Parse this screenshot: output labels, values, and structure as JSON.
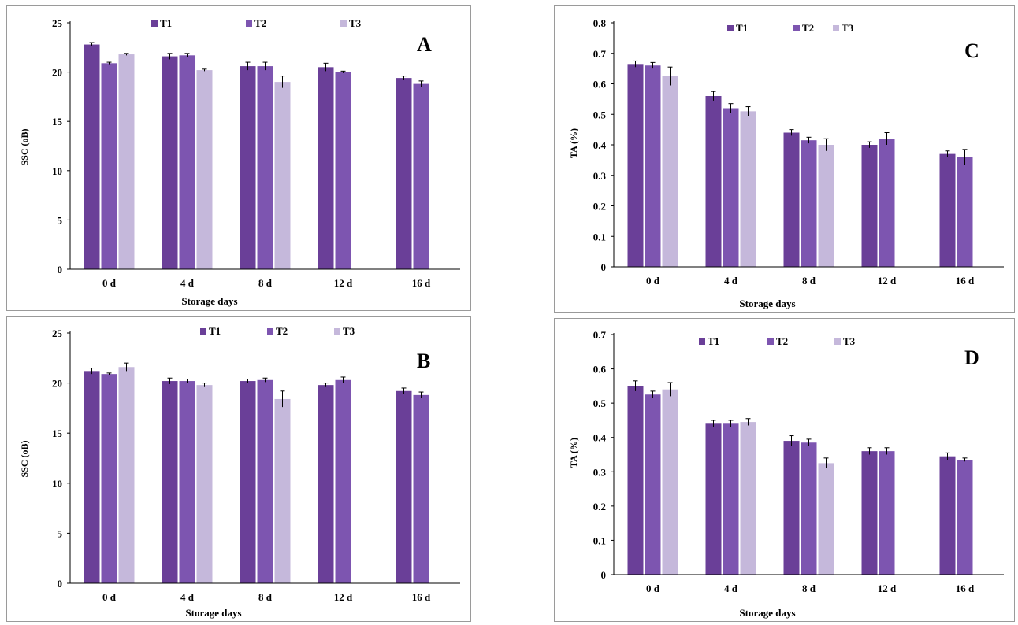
{
  "colors": {
    "T1": "#6a3f98",
    "T2": "#7d55b0",
    "T3": "#c5b8db",
    "axis": "#000000",
    "frame": "#9a9a9a"
  },
  "chart_data": [
    {
      "panel": "A",
      "type": "bar",
      "letter": "A",
      "categories": [
        "0 d",
        "4 d",
        "8 d",
        "12 d",
        "16 d"
      ],
      "xlabel": "Storage days",
      "ylabel": "SSC (oB)",
      "ylim": [
        0,
        25
      ],
      "yticks": [
        "0",
        "5",
        "10",
        "15",
        "20",
        "25"
      ],
      "legend_position": "top",
      "series": [
        {
          "name": "T1",
          "values": [
            22.8,
            21.6,
            20.6,
            20.5,
            19.4
          ],
          "errors": [
            0.2,
            0.3,
            0.4,
            0.4,
            0.2
          ]
        },
        {
          "name": "T2",
          "values": [
            20.9,
            21.7,
            20.6,
            20.0,
            18.8
          ],
          "errors": [
            0.1,
            0.2,
            0.4,
            0.1,
            0.3
          ]
        },
        {
          "name": "T3",
          "values": [
            21.8,
            20.2,
            19.0,
            null,
            null
          ],
          "errors": [
            0.1,
            0.1,
            0.6,
            null,
            null
          ]
        }
      ]
    },
    {
      "panel": "B",
      "type": "bar",
      "letter": "B",
      "categories": [
        "0 d",
        "4 d",
        "8 d",
        "12 d",
        "16 d"
      ],
      "xlabel": "Storage days",
      "ylabel": "SSC (oB)",
      "ylim": [
        0,
        25
      ],
      "yticks": [
        "0",
        "5",
        "10",
        "15",
        "20",
        "25"
      ],
      "legend_position": "top",
      "series": [
        {
          "name": "T1",
          "values": [
            21.2,
            20.2,
            20.2,
            19.8,
            19.2
          ],
          "errors": [
            0.3,
            0.3,
            0.2,
            0.2,
            0.3
          ]
        },
        {
          "name": "T2",
          "values": [
            20.9,
            20.2,
            20.3,
            20.3,
            18.8
          ],
          "errors": [
            0.1,
            0.2,
            0.2,
            0.3,
            0.3
          ]
        },
        {
          "name": "T3",
          "values": [
            21.6,
            19.8,
            18.4,
            null,
            null
          ],
          "errors": [
            0.4,
            0.2,
            0.8,
            null,
            null
          ]
        }
      ]
    },
    {
      "panel": "C",
      "type": "bar",
      "letter": "C",
      "categories": [
        "0 d",
        "4 d",
        "8 d",
        "12 d",
        "16 d"
      ],
      "xlabel": "Storage days",
      "ylabel": "TA (%)",
      "ylim": [
        0,
        0.8
      ],
      "yticks": [
        "0",
        "0.1",
        "0.2",
        "0.3",
        "0.4",
        "0.5",
        "0.6",
        "0.7",
        "0.8"
      ],
      "legend_position": "top",
      "series": [
        {
          "name": "T1",
          "values": [
            0.665,
            0.56,
            0.44,
            0.4,
            0.37
          ],
          "errors": [
            0.01,
            0.015,
            0.01,
            0.01,
            0.01
          ]
        },
        {
          "name": "T2",
          "values": [
            0.66,
            0.52,
            0.415,
            0.42,
            0.36
          ],
          "errors": [
            0.01,
            0.015,
            0.01,
            0.02,
            0.025
          ]
        },
        {
          "name": "T3",
          "values": [
            0.625,
            0.51,
            0.4,
            null,
            null
          ],
          "errors": [
            0.03,
            0.015,
            0.02,
            null,
            null
          ]
        }
      ]
    },
    {
      "panel": "D",
      "type": "bar",
      "letter": "D",
      "categories": [
        "0 d",
        "4 d",
        "8 d",
        "12 d",
        "16 d"
      ],
      "xlabel": "Storage days",
      "ylabel": "TA (%)",
      "ylim": [
        0,
        0.7
      ],
      "yticks": [
        "0",
        "0.1",
        "0.2",
        "0.3",
        "0.4",
        "0.5",
        "0.6",
        "0.7"
      ],
      "legend_position": "top",
      "series": [
        {
          "name": "T1",
          "values": [
            0.55,
            0.44,
            0.39,
            0.36,
            0.345
          ],
          "errors": [
            0.015,
            0.01,
            0.015,
            0.01,
            0.01
          ]
        },
        {
          "name": "T2",
          "values": [
            0.525,
            0.44,
            0.385,
            0.36,
            0.335
          ],
          "errors": [
            0.01,
            0.01,
            0.01,
            0.01,
            0.005
          ]
        },
        {
          "name": "T3",
          "values": [
            0.54,
            0.445,
            0.325,
            null,
            null
          ],
          "errors": [
            0.02,
            0.01,
            0.015,
            null,
            null
          ]
        }
      ]
    }
  ]
}
